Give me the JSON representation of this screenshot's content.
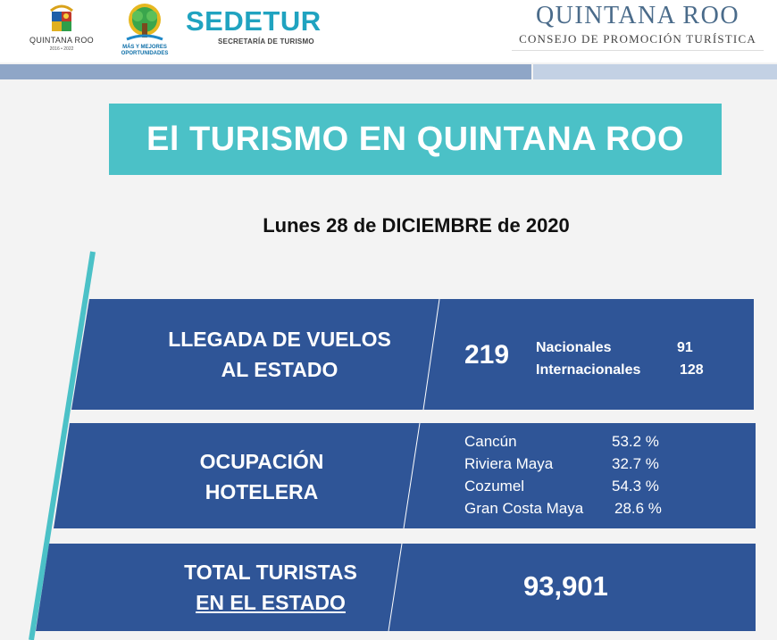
{
  "header": {
    "qroo_logo": {
      "name": "QUINTANA ROO",
      "years": "2016 • 2022"
    },
    "tree_logo": {
      "caption_line1": "MÁS Y MEJORES",
      "caption_line2": "OPORTUNIDADES"
    },
    "sedetur": {
      "title": "SEDETUR",
      "subtitle": "SECRETARÍA DE TURISMO"
    },
    "cpt": {
      "title": "QUINTANA ROO",
      "subtitle": "CONSEJO DE PROMOCIÓN TURÍSTICA"
    }
  },
  "main_title": "El TURISMO EN QUINTANA ROO",
  "date": "Lunes 28 de DICIEMBRE de 2020",
  "flights": {
    "label_line1": "LLEGADA DE VUELOS",
    "label_line2": "AL ESTADO",
    "total": "219",
    "rows": [
      {
        "label": "Nacionales",
        "value": "91"
      },
      {
        "label": "Internacionales",
        "value": "128"
      }
    ]
  },
  "occupancy": {
    "label_line1": "OCUPACIÓN",
    "label_line2": "HOTELERA",
    "rows": [
      {
        "place": "Cancún",
        "value": "53.2 %"
      },
      {
        "place": "Riviera Maya",
        "value": "32.7 %"
      },
      {
        "place": "Cozumel",
        "value": "54.3 %"
      },
      {
        "place": "Gran Costa Maya",
        "value": "28.6 %"
      }
    ]
  },
  "tourists": {
    "label_line1": "TOTAL TURISTAS",
    "label_line2": "EN EL ESTADO",
    "total": "93,901"
  },
  "colors": {
    "panel_blue": "#2f5597",
    "teal": "#4bc1c7",
    "bar_dark": "#8fa6c7",
    "bar_light": "#c3d1e4"
  }
}
